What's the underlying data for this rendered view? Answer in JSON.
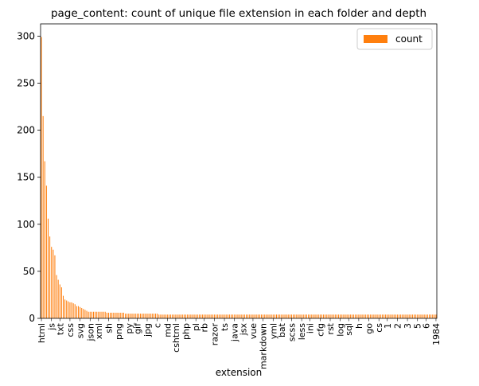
{
  "chart_data": {
    "type": "bar",
    "title": "page_content: count of unique file extension in each folder and depth",
    "xlabel": "extension",
    "ylabel": "",
    "ylim": [
      0,
      313
    ],
    "yticks": [
      0,
      50,
      100,
      150,
      200,
      250,
      300
    ],
    "legend": {
      "placement": "top-right",
      "entries": [
        "count"
      ]
    },
    "grid": false,
    "colors": {
      "bar": "#ff7f0e",
      "axis": "#000000"
    },
    "series": [
      {
        "name": "count",
        "values": [
          299,
          215,
          167,
          141,
          106,
          87,
          76,
          73,
          67,
          46,
          41,
          36,
          33,
          24,
          20,
          19,
          18,
          17,
          17,
          16,
          15,
          13,
          13,
          12,
          11,
          10,
          9,
          8,
          7,
          7,
          7,
          7,
          7,
          7,
          7,
          7,
          7,
          7,
          7,
          6,
          6,
          6,
          6,
          6,
          6,
          6,
          6,
          6,
          6,
          6,
          5,
          5,
          5,
          5,
          5,
          5,
          5,
          5,
          5,
          5,
          5,
          5,
          5,
          5,
          5,
          5,
          5,
          5,
          5,
          5,
          4,
          4,
          4,
          4,
          4,
          4,
          4,
          4,
          4,
          4,
          4,
          4,
          4,
          4,
          4,
          4,
          4,
          4,
          4,
          4,
          4,
          4,
          4,
          4,
          4,
          4,
          4,
          4,
          4,
          4,
          4,
          4,
          4,
          4,
          4,
          4,
          4,
          4,
          4,
          4,
          4,
          4,
          4,
          4,
          4,
          4,
          4,
          4,
          4,
          4,
          4,
          4,
          4,
          4,
          4,
          4,
          4,
          4,
          4,
          4,
          4,
          4,
          4,
          4,
          4,
          4,
          4,
          4,
          4,
          4,
          4,
          4,
          4,
          4,
          4,
          4,
          4,
          4,
          4,
          4,
          4,
          4,
          4,
          4,
          4,
          4,
          4,
          4,
          4,
          4,
          4,
          4,
          4,
          4,
          4,
          4,
          4,
          4,
          4,
          4,
          4,
          4,
          4,
          4,
          4,
          4,
          4,
          4,
          4,
          4,
          4,
          4,
          4,
          4,
          4,
          4,
          4,
          4,
          4,
          4,
          4,
          4,
          4,
          4,
          4,
          4,
          4,
          4,
          4,
          4,
          4,
          4,
          4,
          4,
          4,
          4,
          4,
          4,
          4,
          4,
          4,
          4,
          4,
          4,
          4,
          4,
          4,
          4,
          4,
          4,
          4,
          4,
          4,
          4,
          4,
          4,
          4,
          4,
          4,
          4,
          4,
          4,
          4,
          4,
          4,
          4
        ]
      }
    ],
    "x_tick_labels_legible": [
      "html",
      "js",
      "txt",
      "css",
      "svg",
      "json",
      "xml",
      "sh",
      "png",
      "py",
      "gif",
      "jpg",
      "c",
      "md",
      "cshtml",
      "php",
      "pl",
      "rb",
      "razor",
      "ts",
      "java",
      "jsx",
      "vue",
      "markdown",
      "yml",
      "bat",
      "scss",
      "less",
      "ini",
      "cfg",
      "rst",
      "log",
      "sql",
      "h",
      "go",
      "cs",
      "1",
      "2",
      "3",
      "5",
      "6",
      "1984"
    ]
  }
}
